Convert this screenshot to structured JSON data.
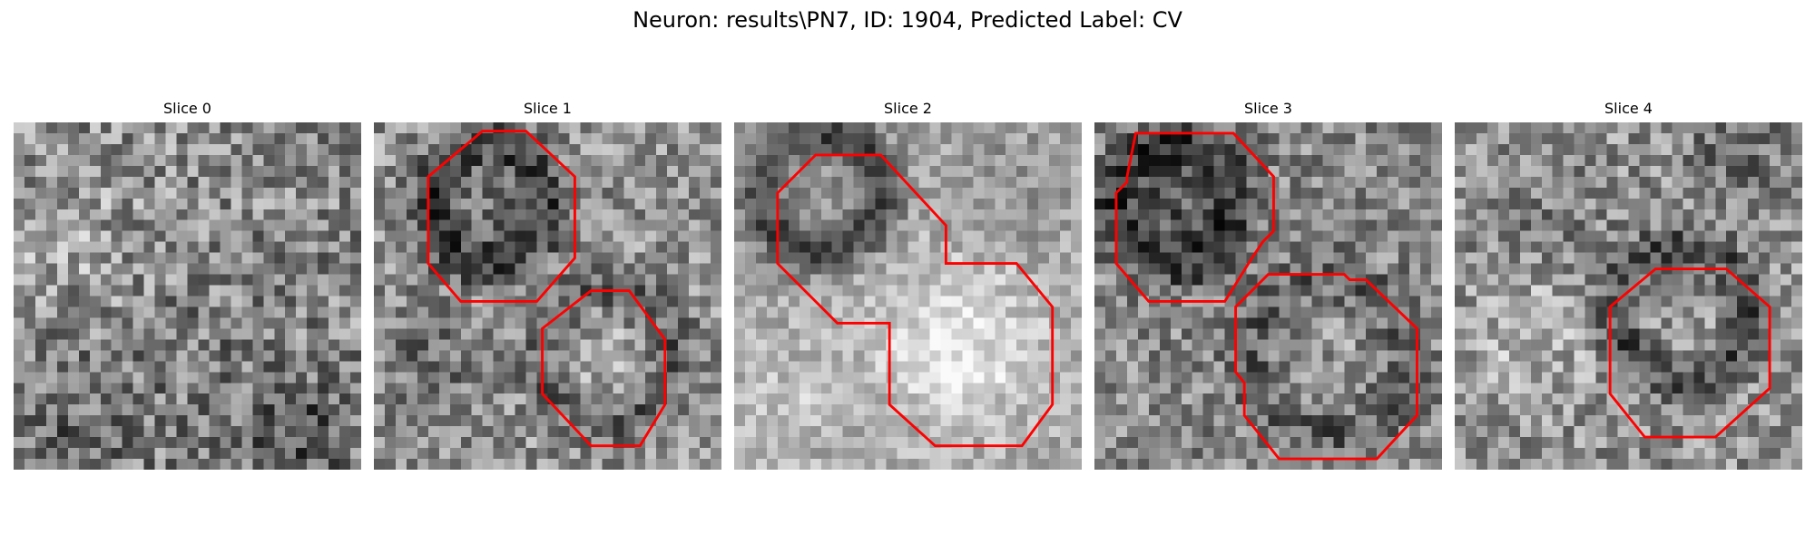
{
  "figure": {
    "title": "Neuron: results\\PN7, ID: 1904, Predicted Label: CV"
  },
  "colors": {
    "outline": "#ff0000",
    "background": "#ffffff"
  },
  "panels": [
    {
      "title": "Slice 0"
    },
    {
      "title": "Slice 1"
    },
    {
      "title": "Slice 2"
    },
    {
      "title": "Slice 3"
    },
    {
      "title": "Slice 4"
    }
  ]
}
